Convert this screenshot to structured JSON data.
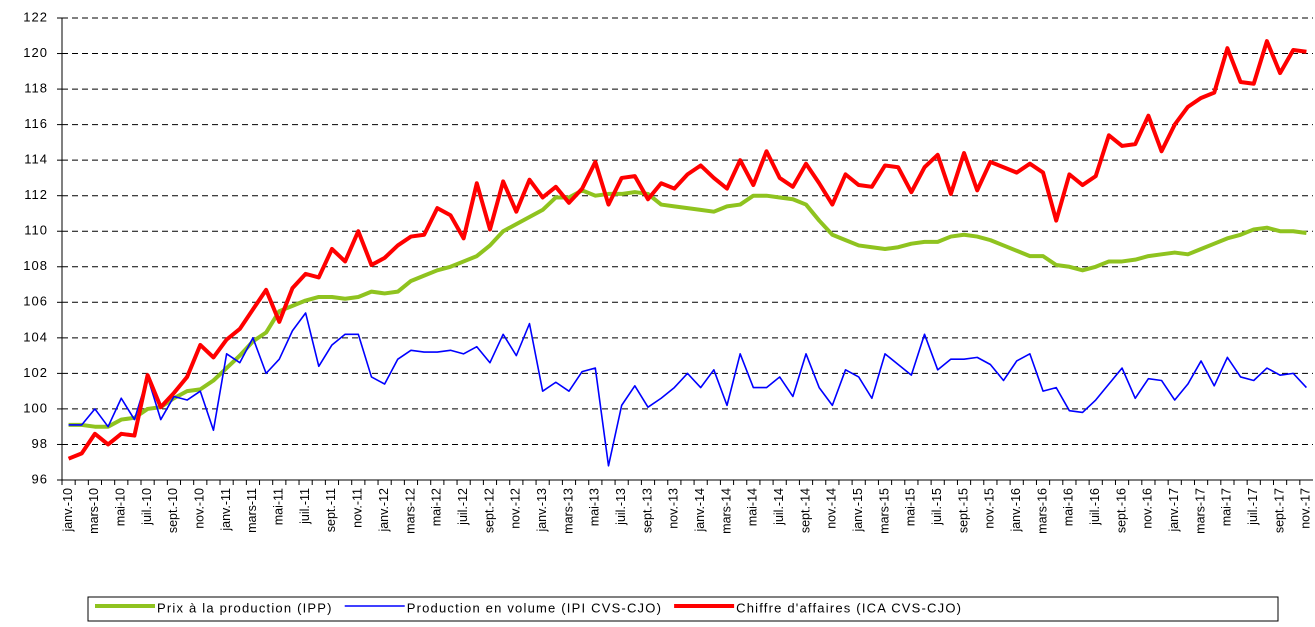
{
  "chart_data": {
    "type": "line",
    "categories": [
      "janv.-10",
      null,
      "mars-10",
      null,
      "mai-10",
      null,
      "juil.-10",
      null,
      "sept.-10",
      null,
      "nov.-10",
      null,
      "janv.-11",
      null,
      "mars-11",
      null,
      "mai-11",
      null,
      "juil.-11",
      null,
      "sept.-11",
      null,
      "nov.-11",
      null,
      "janv.-12",
      null,
      "mars-12",
      null,
      "mai-12",
      null,
      "juil.-12",
      null,
      "sept.-12",
      null,
      "nov.-12",
      null,
      "janv.-13",
      null,
      "mars-13",
      null,
      "mai-13",
      null,
      "juil.-13",
      null,
      "sept.-13",
      null,
      "nov.-13",
      null,
      "janv.-14",
      null,
      "mars-14",
      null,
      "mai-14",
      null,
      "juil.-14",
      null,
      "sept.-14",
      null,
      "nov.-14",
      null,
      "janv.-15",
      null,
      "mars-15",
      null,
      "mai-15",
      null,
      "juil.-15",
      null,
      "sept.-15",
      null,
      "nov.-15",
      null,
      "janv.-16",
      null,
      "mars-16",
      null,
      "mai-16",
      null,
      "juil.-16",
      null,
      "sept.-16",
      null,
      "nov.-16",
      null,
      "janv.-17",
      null,
      "mars-17",
      null,
      "mai-17",
      null,
      "juil.-17",
      null,
      "sept.-17",
      null,
      "nov.-17"
    ],
    "series": [
      {
        "name": "Prix à la production (IPP)",
        "color": "#8fc31f",
        "width": 4,
        "values": [
          99.1,
          99.1,
          99.0,
          99.0,
          99.4,
          99.5,
          100.0,
          100.1,
          100.6,
          101.0,
          101.1,
          101.6,
          102.3,
          103.0,
          103.8,
          104.3,
          105.5,
          105.8,
          106.1,
          106.3,
          106.3,
          106.2,
          106.3,
          106.6,
          106.5,
          106.6,
          107.2,
          107.5,
          107.8,
          108.0,
          108.3,
          108.6,
          109.2,
          110.0,
          110.4,
          110.8,
          111.2,
          111.9,
          111.9,
          112.3,
          112.0,
          112.1,
          112.1,
          112.2,
          112.1,
          111.5,
          111.4,
          111.3,
          111.2,
          111.1,
          111.4,
          111.5,
          112.0,
          112.0,
          111.9,
          111.8,
          111.5,
          110.6,
          109.8,
          109.5,
          109.2,
          109.1,
          109.0,
          109.1,
          109.3,
          109.4,
          109.4,
          109.7,
          109.8,
          109.7,
          109.5,
          109.2,
          108.9,
          108.6,
          108.6,
          108.1,
          108.0,
          107.8,
          108.0,
          108.3,
          108.3,
          108.4,
          108.6,
          108.7,
          108.8,
          108.7,
          109.0,
          109.3,
          109.6,
          109.8,
          110.1,
          110.2,
          110.0,
          110.0,
          109.9
        ]
      },
      {
        "name": "Production en volume (IPI CVS-CJO)",
        "color": "#0000ff",
        "width": 1.6,
        "values": [
          99.1,
          99.1,
          100.0,
          99.0,
          100.6,
          99.4,
          101.8,
          99.4,
          100.7,
          100.5,
          101.0,
          98.8,
          103.1,
          102.6,
          104.0,
          102.0,
          102.8,
          104.4,
          105.4,
          102.4,
          103.6,
          104.2,
          104.2,
          101.8,
          101.4,
          102.8,
          103.3,
          103.2,
          103.2,
          103.3,
          103.1,
          103.5,
          102.6,
          104.2,
          103.0,
          104.8,
          101.0,
          101.5,
          101.0,
          102.1,
          102.3,
          96.8,
          100.2,
          101.3,
          100.1,
          100.6,
          101.2,
          102.0,
          101.2,
          102.2,
          100.2,
          103.1,
          101.2,
          101.2,
          101.8,
          100.7,
          103.1,
          101.2,
          100.2,
          102.2,
          101.8,
          100.6,
          103.1,
          102.5,
          101.9,
          104.2,
          102.2,
          102.8,
          102.8,
          102.9,
          102.5,
          101.6,
          102.7,
          103.1,
          101.0,
          101.2,
          99.9,
          99.8,
          100.5,
          101.4,
          102.3,
          100.6,
          101.7,
          101.6,
          100.5,
          101.4,
          102.7,
          101.3,
          102.9,
          101.8,
          101.6,
          102.3,
          101.9,
          102.0,
          101.2
        ]
      },
      {
        "name": "Chiffre d'affaires (ICA CVS-CJO)",
        "color": "#ff0000",
        "width": 4,
        "values": [
          97.2,
          97.5,
          98.6,
          98.0,
          98.6,
          98.5,
          101.9,
          100.1,
          100.9,
          101.8,
          103.6,
          102.9,
          103.9,
          104.5,
          105.6,
          106.7,
          104.9,
          106.8,
          107.6,
          107.4,
          109.0,
          108.3,
          110.0,
          108.1,
          108.5,
          109.2,
          109.7,
          109.8,
          111.3,
          110.9,
          109.6,
          112.7,
          110.1,
          112.8,
          111.1,
          112.9,
          111.9,
          112.5,
          111.6,
          112.4,
          113.9,
          111.5,
          113.0,
          113.1,
          111.8,
          112.7,
          112.4,
          113.2,
          113.7,
          113.0,
          112.4,
          114.0,
          112.6,
          114.5,
          113.0,
          112.5,
          113.8,
          112.7,
          111.5,
          113.2,
          112.6,
          112.5,
          113.7,
          113.6,
          112.2,
          113.6,
          114.3,
          112.1,
          114.4,
          112.3,
          113.9,
          113.6,
          113.3,
          113.8,
          113.3,
          110.6,
          113.2,
          112.6,
          113.1,
          115.4,
          114.8,
          114.9,
          116.5,
          114.5,
          116.0,
          117.0,
          117.5,
          117.8,
          120.3,
          118.4,
          118.3,
          120.7,
          118.9,
          120.2,
          120.1
        ]
      }
    ],
    "ylim": [
      96,
      122
    ],
    "yticks": [
      96,
      98,
      100,
      102,
      104,
      106,
      108,
      110,
      112,
      114,
      116,
      118,
      120,
      122
    ],
    "grid": true,
    "legend": "bottom"
  }
}
